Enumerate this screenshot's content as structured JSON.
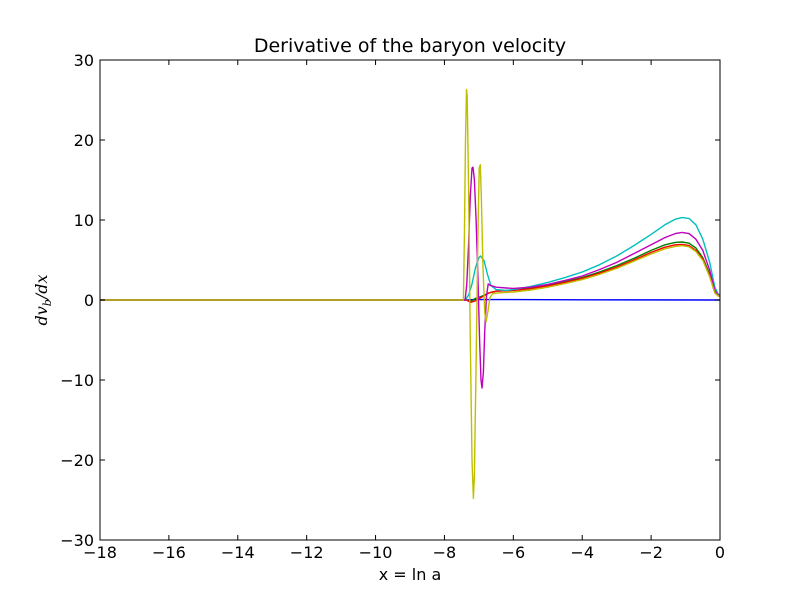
{
  "chart_data": {
    "type": "line",
    "title": "Derivative of the baryon velocity",
    "xlabel": "x = ln a",
    "ylabel": "dv_b/dx",
    "ylabel_parts": {
      "base": "dv",
      "sub": "b",
      "rest": "/dx"
    },
    "xlim": [
      -18,
      0
    ],
    "ylim": [
      -30,
      30
    ],
    "xticks": [
      -18,
      -16,
      -14,
      -12,
      -10,
      -8,
      -6,
      -4,
      -2,
      0
    ],
    "yticks": [
      -30,
      -20,
      -10,
      0,
      10,
      20,
      30
    ],
    "xtick_labels": [
      "−18",
      "−16",
      "−14",
      "−12",
      "−10",
      "−8",
      "−6",
      "−4",
      "−2",
      "0"
    ],
    "ytick_labels": [
      "−30",
      "−20",
      "−10",
      "0",
      "10",
      "20",
      "30"
    ],
    "grid": false,
    "legend": "none",
    "series": [
      {
        "color": "#0000ff",
        "points": [
          [
            -18,
            0
          ],
          [
            -10,
            0
          ],
          [
            -7.3,
            0
          ],
          [
            -7.2,
            0.05
          ],
          [
            -6,
            0.05
          ],
          [
            -4,
            0.02
          ],
          [
            0,
            0
          ]
        ]
      },
      {
        "color": "#008000",
        "points": [
          [
            -18,
            0
          ],
          [
            -7.35,
            0
          ],
          [
            -7.25,
            -0.2
          ],
          [
            -7.1,
            0.2
          ],
          [
            -6.9,
            0.5
          ],
          [
            -6.7,
            0.9
          ],
          [
            -6.5,
            1.1
          ],
          [
            -6.0,
            1.25
          ],
          [
            -5.5,
            1.5
          ],
          [
            -5.0,
            1.85
          ],
          [
            -4.5,
            2.3
          ],
          [
            -4.0,
            2.8
          ],
          [
            -3.5,
            3.5
          ],
          [
            -3.0,
            4.3
          ],
          [
            -2.5,
            5.2
          ],
          [
            -2.0,
            6.2
          ],
          [
            -1.6,
            6.9
          ],
          [
            -1.3,
            7.2
          ],
          [
            -1.1,
            7.25
          ],
          [
            -0.9,
            7.1
          ],
          [
            -0.7,
            6.5
          ],
          [
            -0.5,
            5.3
          ],
          [
            -0.3,
            3.2
          ],
          [
            -0.15,
            1.0
          ],
          [
            -0.05,
            0.6
          ],
          [
            0,
            0.6
          ]
        ]
      },
      {
        "color": "#ff0000",
        "points": [
          [
            -18,
            0
          ],
          [
            -7.35,
            0
          ],
          [
            -7.25,
            -0.3
          ],
          [
            -7.1,
            -0.1
          ],
          [
            -6.9,
            0.4
          ],
          [
            -6.7,
            0.9
          ],
          [
            -6.5,
            1.1
          ],
          [
            -6.0,
            1.2
          ],
          [
            -5.5,
            1.4
          ],
          [
            -5.0,
            1.75
          ],
          [
            -4.5,
            2.2
          ],
          [
            -4.0,
            2.7
          ],
          [
            -3.5,
            3.35
          ],
          [
            -3.0,
            4.1
          ],
          [
            -2.5,
            5.0
          ],
          [
            -2.0,
            5.95
          ],
          [
            -1.6,
            6.6
          ],
          [
            -1.3,
            6.9
          ],
          [
            -1.1,
            6.95
          ],
          [
            -0.9,
            6.8
          ],
          [
            -0.7,
            6.2
          ],
          [
            -0.5,
            5.1
          ],
          [
            -0.3,
            3.0
          ],
          [
            -0.15,
            0.9
          ],
          [
            -0.05,
            0.5
          ],
          [
            0,
            0.5
          ]
        ]
      },
      {
        "color": "#00bfbf",
        "points": [
          [
            -18,
            0
          ],
          [
            -7.4,
            0
          ],
          [
            -7.3,
            0.6
          ],
          [
            -7.2,
            2.0
          ],
          [
            -7.1,
            4.0
          ],
          [
            -7.0,
            5.3
          ],
          [
            -6.95,
            5.5
          ],
          [
            -6.85,
            4.9
          ],
          [
            -6.75,
            3.2
          ],
          [
            -6.65,
            1.8
          ],
          [
            -6.5,
            1.3
          ],
          [
            -6.2,
            1.2
          ],
          [
            -6.0,
            1.3
          ],
          [
            -5.5,
            1.7
          ],
          [
            -5.0,
            2.2
          ],
          [
            -4.5,
            2.8
          ],
          [
            -4.0,
            3.5
          ],
          [
            -3.5,
            4.4
          ],
          [
            -3.0,
            5.5
          ],
          [
            -2.5,
            6.8
          ],
          [
            -2.0,
            8.2
          ],
          [
            -1.6,
            9.4
          ],
          [
            -1.3,
            10.1
          ],
          [
            -1.1,
            10.3
          ],
          [
            -0.9,
            10.2
          ],
          [
            -0.7,
            9.4
          ],
          [
            -0.5,
            7.6
          ],
          [
            -0.3,
            4.7
          ],
          [
            -0.15,
            1.6
          ],
          [
            -0.05,
            0.7
          ],
          [
            0,
            0.7
          ]
        ]
      },
      {
        "color": "#bf00bf",
        "points": [
          [
            -18,
            0
          ],
          [
            -7.4,
            0
          ],
          [
            -7.35,
            2.0
          ],
          [
            -7.3,
            7.0
          ],
          [
            -7.25,
            13.0
          ],
          [
            -7.2,
            16.5
          ],
          [
            -7.17,
            16.6
          ],
          [
            -7.13,
            15.0
          ],
          [
            -7.08,
            10.0
          ],
          [
            -7.03,
            3.0
          ],
          [
            -6.98,
            -5.0
          ],
          [
            -6.94,
            -10.0
          ],
          [
            -6.91,
            -11.0
          ],
          [
            -6.87,
            -9.0
          ],
          [
            -6.83,
            -4.0
          ],
          [
            -6.78,
            0.5
          ],
          [
            -6.73,
            2.0
          ],
          [
            -6.65,
            1.8
          ],
          [
            -6.5,
            1.6
          ],
          [
            -6.2,
            1.5
          ],
          [
            -6.0,
            1.45
          ],
          [
            -5.5,
            1.6
          ],
          [
            -5.0,
            1.95
          ],
          [
            -4.5,
            2.45
          ],
          [
            -4.0,
            3.0
          ],
          [
            -3.5,
            3.8
          ],
          [
            -3.0,
            4.7
          ],
          [
            -2.5,
            5.8
          ],
          [
            -2.0,
            6.9
          ],
          [
            -1.6,
            7.8
          ],
          [
            -1.3,
            8.3
          ],
          [
            -1.1,
            8.45
          ],
          [
            -0.9,
            8.3
          ],
          [
            -0.7,
            7.6
          ],
          [
            -0.5,
            6.2
          ],
          [
            -0.3,
            3.7
          ],
          [
            -0.15,
            1.2
          ],
          [
            -0.05,
            0.6
          ],
          [
            0,
            0.6
          ]
        ]
      },
      {
        "color": "#bfbf00",
        "points": [
          [
            -18,
            0
          ],
          [
            -7.45,
            0
          ],
          [
            -7.42,
            8.0
          ],
          [
            -7.39,
            20.0
          ],
          [
            -7.36,
            26.3
          ],
          [
            -7.34,
            25.5
          ],
          [
            -7.3,
            14.0
          ],
          [
            -7.25,
            -5.0
          ],
          [
            -7.2,
            -20.0
          ],
          [
            -7.16,
            -24.8
          ],
          [
            -7.13,
            -22.0
          ],
          [
            -7.08,
            -8.0
          ],
          [
            -7.03,
            8.0
          ],
          [
            -6.99,
            16.5
          ],
          [
            -6.96,
            16.9
          ],
          [
            -6.93,
            13.0
          ],
          [
            -6.88,
            4.0
          ],
          [
            -6.83,
            -1.5
          ],
          [
            -6.79,
            -2.7
          ],
          [
            -6.74,
            -1.5
          ],
          [
            -6.68,
            0.3
          ],
          [
            -6.6,
            0.8
          ],
          [
            -6.4,
            0.9
          ],
          [
            -6.0,
            1.0
          ],
          [
            -5.5,
            1.25
          ],
          [
            -5.0,
            1.6
          ],
          [
            -4.5,
            2.05
          ],
          [
            -4.0,
            2.55
          ],
          [
            -3.5,
            3.2
          ],
          [
            -3.0,
            3.95
          ],
          [
            -2.5,
            4.85
          ],
          [
            -2.0,
            5.75
          ],
          [
            -1.6,
            6.4
          ],
          [
            -1.3,
            6.7
          ],
          [
            -1.1,
            6.8
          ],
          [
            -0.9,
            6.65
          ],
          [
            -0.7,
            6.05
          ],
          [
            -0.5,
            4.95
          ],
          [
            -0.3,
            2.9
          ],
          [
            -0.15,
            0.9
          ],
          [
            -0.05,
            0.5
          ],
          [
            0,
            0.5
          ]
        ]
      }
    ]
  }
}
